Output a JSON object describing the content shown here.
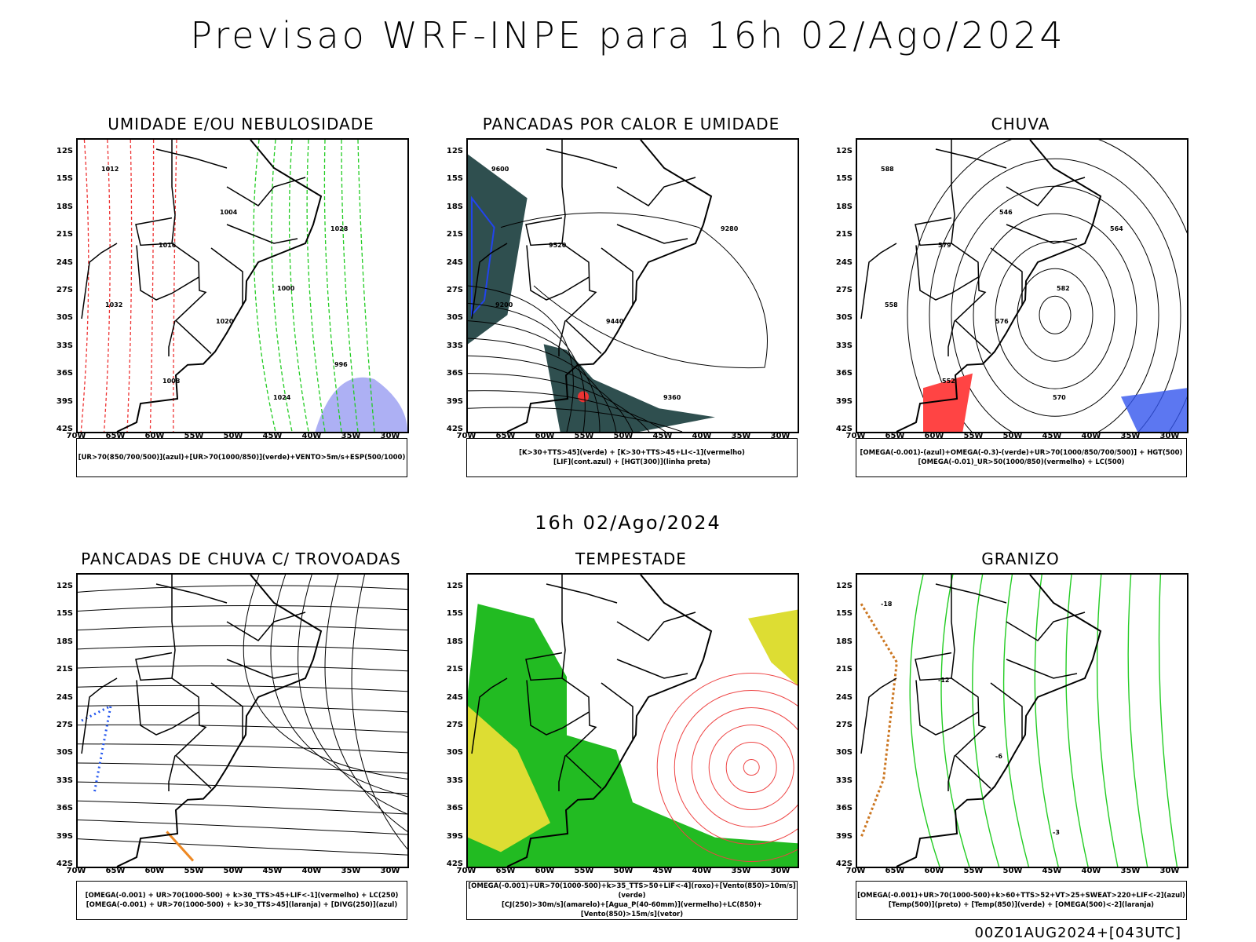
{
  "title": "Previsao WRF-INPE  para 16h 02/Ago/2024",
  "mid_title": "16h 02/Ago/2024",
  "footer": "00Z01AUG2024+[043UTC]",
  "lat_labels": [
    "12S",
    "15S",
    "18S",
    "21S",
    "24S",
    "27S",
    "30S",
    "33S",
    "36S",
    "39S",
    "42S"
  ],
  "lon_labels": [
    "70W",
    "65W",
    "60W",
    "55W",
    "50W",
    "45W",
    "40W",
    "35W",
    "30W"
  ],
  "panels": [
    {
      "id": "umidade",
      "title": "UMIDADE E/OU NEBULOSIDADE",
      "legend": [
        "[UR>70(850/700/500)](azul)+[UR>70(1000/850)](verde)+VENTO>5m/s+ESP(500/1000)"
      ],
      "contour_labels": [
        "1012",
        "1016",
        "1020",
        "1024",
        "1028",
        "1032",
        "1008",
        "1004",
        "1000",
        "996"
      ]
    },
    {
      "id": "pancadas_calor",
      "title": "PANCADAS POR CALOR E UMIDADE",
      "legend": [
        "[K>30+TTS>45](verde) + [K>30+TTS>45+LI<-1](vermelho)",
        "[LIF](cont.azul) + [HGT(300)](linha preta)"
      ],
      "contour_labels": [
        "9600",
        "9520",
        "9440",
        "9360",
        "9280",
        "9200"
      ]
    },
    {
      "id": "chuva",
      "title": "CHUVA",
      "legend": [
        "[OMEGA(-0.001)-(azul)+OMEGA(-0.3)-(verde)+UR>70(1000/850/700/500)] + HGT(500)",
        "[OMEGA(-0.01)_UR>50(1000/850)(vermelho) + LC(500)"
      ],
      "contour_labels": [
        "588",
        "579",
        "576",
        "570",
        "564",
        "558",
        "552",
        "546",
        "582"
      ]
    },
    {
      "id": "trovoadas",
      "title": "PANCADAS DE CHUVA C/ TROVOADAS",
      "legend": [
        "[OMEGA(-0.001) + UR>70(1000-500) + k>30_TTS>45+LIF<-1](vermelho) + LC(250)",
        "[OMEGA(-0.001) + UR>70(1000-500) + k>30_TTS>45](laranja) + [DIVG(250)](azul)"
      ],
      "contour_labels": []
    },
    {
      "id": "tempestade",
      "title": "TEMPESTADE",
      "legend": [
        "[OMEGA(-0.001)+UR>70(1000-500)+k>35_TTS>50+LIF<-4](roxo)+[Vento(850)>10m/s](verde)",
        "[CJ(250)>30m/s](amarelo)+[Agua_P(40-60mm)](vermelho)+LC(850)+[Vento(850)>15m/s](vetor)"
      ],
      "contour_labels": []
    },
    {
      "id": "granizo",
      "title": "GRANIZO",
      "legend": [
        "[OMEGA(-0.001)+UR>70(1000-500)+k>60+TTS>52+VT>25+SWEAT>220+LIF<-2](azul)",
        "[Temp(500)](preto) + [Temp(850)](verde) + [OMEGA(500)<-2](laranja)"
      ],
      "contour_labels": [
        "-18",
        "-12",
        "-6",
        "-3"
      ]
    }
  ]
}
